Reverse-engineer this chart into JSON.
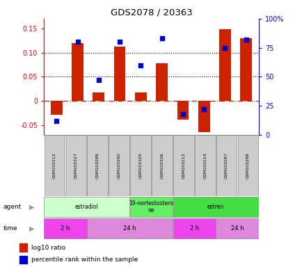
{
  "title": "GDS2078 / 20363",
  "samples": [
    "GSM103112",
    "GSM103327",
    "GSM103289",
    "GSM103290",
    "GSM103325",
    "GSM103326",
    "GSM103113",
    "GSM103114",
    "GSM103287",
    "GSM103288"
  ],
  "log10_ratio": [
    -0.028,
    0.12,
    0.018,
    0.113,
    0.018,
    0.078,
    -0.038,
    -0.065,
    0.148,
    0.13
  ],
  "percentile_rank": [
    0.12,
    0.8,
    0.47,
    0.8,
    0.6,
    0.83,
    0.18,
    0.22,
    0.75,
    0.82
  ],
  "ylim_left": [
    -0.07,
    0.17
  ],
  "ylim_right": [
    0,
    1.0
  ],
  "yticks_left": [
    -0.05,
    0.0,
    0.05,
    0.1,
    0.15
  ],
  "yticks_right": [
    0.0,
    0.25,
    0.5,
    0.75,
    1.0
  ],
  "ytick_labels_left": [
    "-0.05",
    "0",
    "0.05",
    "0.10",
    "0.15"
  ],
  "ytick_labels_right": [
    "0",
    "25",
    "50",
    "75",
    "100%"
  ],
  "bar_color": "#cc2200",
  "dot_color": "#0000cc",
  "agent_groups": [
    {
      "label": "estradiol",
      "start": 0,
      "end": 4,
      "color": "#ccffcc"
    },
    {
      "label": "19-nortestostero\nne",
      "start": 4,
      "end": 6,
      "color": "#66ee66"
    },
    {
      "label": "estren",
      "start": 6,
      "end": 10,
      "color": "#44dd44"
    }
  ],
  "time_groups": [
    {
      "label": "2 h",
      "start": 0,
      "end": 2,
      "color": "#ee44ee"
    },
    {
      "label": "24 h",
      "start": 2,
      "end": 6,
      "color": "#dd88dd"
    },
    {
      "label": "2 h",
      "start": 6,
      "end": 8,
      "color": "#ee44ee"
    },
    {
      "label": "24 h",
      "start": 8,
      "end": 10,
      "color": "#dd88dd"
    }
  ],
  "bg_color": "#ffffff",
  "sample_bg_color": "#cccccc",
  "border_color": "#888888"
}
